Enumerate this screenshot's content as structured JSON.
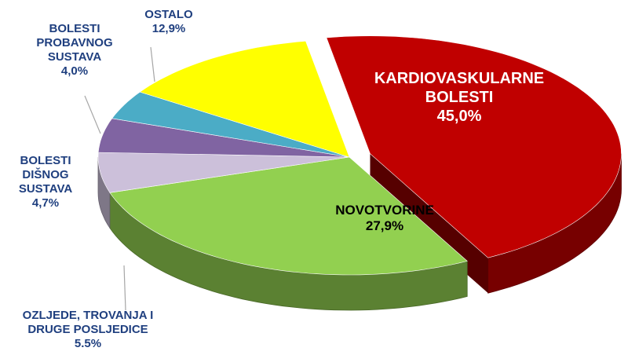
{
  "chart_data": {
    "type": "pie3d",
    "categories": [
      "KARDIOVASKULARNE\nBOLESTI",
      "NOVOTVORINE",
      "OZLJEDE, TROVANJA I\nDRUGE POSLJEDICE",
      "BOLESTI\nDIŠNOG\nSUSTAVA",
      "BOLESTI\nPROBAVNOG\nSUSTAVA",
      "OSTALO"
    ],
    "values": [
      45.0,
      27.9,
      5.5,
      4.7,
      4.0,
      12.9
    ],
    "value_labels": [
      "45,0%",
      "27,9%",
      "5.5%",
      "4,7%",
      "4,0%",
      "12,9%"
    ],
    "colors": [
      "#c00000",
      "#92d050",
      "#ccc0da",
      "#8064a2",
      "#4bacc6",
      "#ffff00"
    ]
  }
}
